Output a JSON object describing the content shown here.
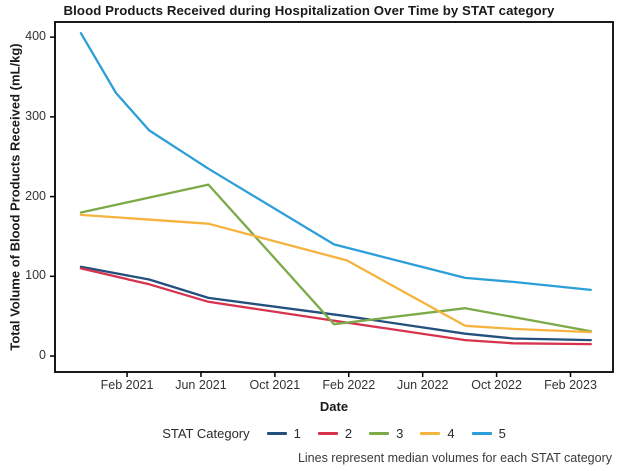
{
  "chart_data": {
    "type": "line",
    "title": "Blood Products Received during Hospitalization Over Time by STAT category",
    "xlabel": "Date",
    "ylabel": "Total Volume of Blood Products Received (mL/kg)",
    "caption": "Lines represent median volumes for each STAT category",
    "legend": {
      "title": "STAT Category",
      "position": "bottom",
      "entries": [
        "1",
        "2",
        "3",
        "4",
        "5"
      ]
    },
    "grid": false,
    "x_unit": "months since Nov 2020 (Feb 2021 = 3, Feb 2023 = 27); point x-values estimated from plot",
    "x_tick_months": [
      3,
      7,
      11,
      15,
      19,
      23,
      27
    ],
    "x_tick_labels": [
      "Feb 2021",
      "Jun 2021",
      "Oct 2021",
      "Feb 2022",
      "Jun 2022",
      "Oct 2022",
      "Feb 2023"
    ],
    "y_ticks": [
      0,
      100,
      200,
      300,
      400
    ],
    "xlim": [
      -0.9,
      29.3
    ],
    "ylim": [
      -20,
      419
    ],
    "series": [
      {
        "name": "1",
        "color": "#24507e",
        "points": [
          [
            0.5,
            112
          ],
          [
            4.2,
            96
          ],
          [
            7.4,
            73
          ],
          [
            14.9,
            50
          ],
          [
            21.3,
            28
          ],
          [
            23.9,
            22
          ],
          [
            28.1,
            20
          ]
        ]
      },
      {
        "name": "2",
        "color": "#d7334f",
        "points": [
          [
            0.5,
            110
          ],
          [
            4.2,
            90
          ],
          [
            7.4,
            68
          ],
          [
            14.9,
            42
          ],
          [
            21.3,
            20
          ],
          [
            23.9,
            16
          ],
          [
            28.1,
            15
          ]
        ]
      },
      {
        "name": "3",
        "color": "#7daa49",
        "points": [
          [
            0.5,
            180
          ],
          [
            7.4,
            215
          ],
          [
            14.2,
            40
          ],
          [
            21.3,
            60
          ],
          [
            28.1,
            31
          ]
        ]
      },
      {
        "name": "4",
        "color": "#f6b33e",
        "points": [
          [
            0.5,
            177
          ],
          [
            7.4,
            166
          ],
          [
            14.9,
            120
          ],
          [
            21.3,
            38
          ],
          [
            23.9,
            34
          ],
          [
            28.1,
            30
          ]
        ]
      },
      {
        "name": "5",
        "color": "#2d9fd8",
        "points": [
          [
            0.5,
            405
          ],
          [
            2.4,
            330
          ],
          [
            4.2,
            283
          ],
          [
            7.4,
            235
          ],
          [
            14.2,
            140
          ],
          [
            21.3,
            98
          ],
          [
            23.9,
            93
          ],
          [
            28.1,
            83
          ]
        ]
      }
    ],
    "axis_color": "#000000"
  }
}
